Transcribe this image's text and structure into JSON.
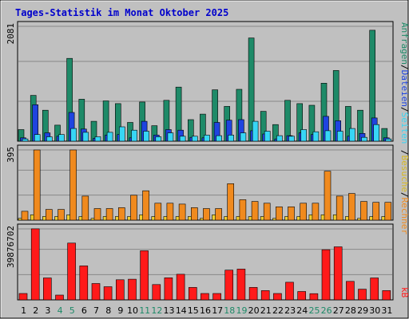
{
  "chart_data": {
    "type": "bar",
    "title": "Tages-Statistik im Monat Oktober 2025",
    "categories": [
      "1",
      "2",
      "3",
      "4",
      "5",
      "6",
      "7",
      "8",
      "9",
      "10",
      "11",
      "12",
      "13",
      "14",
      "15",
      "16",
      "17",
      "18",
      "19",
      "20",
      "21",
      "22",
      "23",
      "24",
      "25",
      "26",
      "27",
      "28",
      "29",
      "30",
      "31"
    ],
    "weekend_days": [
      "4",
      "5",
      "11",
      "12",
      "18",
      "19",
      "25",
      "26"
    ],
    "panels": [
      {
        "id": "top",
        "ymax_label": "2081",
        "ymax": 2081,
        "series": [
          {
            "name": "Anfragen",
            "color": "#1e8a68",
            "values": [
              210,
              830,
              560,
              290,
              1500,
              760,
              360,
              730,
              680,
              340,
              710,
              280,
              740,
              980,
              390,
              490,
              930,
              630,
              940,
              1870,
              540,
              300,
              740,
              680,
              650,
              1050,
              1280,
              630,
              560,
              2010,
              230
            ]
          },
          {
            "name": "Dateien",
            "color": "#1f44e0",
            "values": [
              60,
              660,
              150,
              90,
              520,
              220,
              50,
              110,
              120,
              60,
              360,
              110,
              210,
              200,
              70,
              60,
              340,
              380,
              390,
              190,
              130,
              40,
              100,
              150,
              120,
              450,
              370,
              90,
              140,
              420,
              60
            ]
          },
          {
            "name": "Seiten",
            "color": "#37d6f5",
            "values": [
              40,
              120,
              80,
              120,
              230,
              160,
              80,
              160,
              260,
              200,
              180,
              80,
              150,
              90,
              90,
              110,
              100,
              110,
              150,
              360,
              180,
              100,
              90,
              210,
              170,
              190,
              180,
              230,
              70,
              300,
              40
            ]
          }
        ]
      },
      {
        "id": "middle",
        "ymax_label": "395",
        "ymax": 395,
        "series": [
          {
            "name": "Besuche",
            "color": "#f0d030",
            "values": [
              10,
              30,
              20,
              20,
              30,
              20,
              10,
              20,
              20,
              20,
              30,
              20,
              20,
              20,
              20,
              10,
              30,
              20,
              20,
              20,
              20,
              10,
              20,
              20,
              30,
              30,
              30,
              20,
              10,
              20,
              20
            ]
          },
          {
            "name": "Rechner",
            "color": "#f08a1e",
            "values": [
              50,
              395,
              60,
              60,
              395,
              135,
              65,
              65,
              70,
              140,
              165,
              95,
              95,
              90,
              70,
              65,
              65,
              205,
              115,
              105,
              95,
              75,
              75,
              95,
              95,
              275,
              135,
              150,
              105,
              100,
              100
            ]
          }
        ]
      },
      {
        "id": "bottom",
        "ymax_label": "39876702",
        "ymax": 39876702,
        "series": [
          {
            "name": "kB",
            "color": "#ff1a1a",
            "values": [
              3600000,
              39900000,
              12300000,
              2700000,
              31900000,
              19100000,
              9200000,
              7400000,
              11300000,
              11600000,
              27600000,
              8600000,
              12400000,
              14400000,
              7000000,
              3600000,
              3600000,
              16700000,
              17300000,
              7000000,
              5200000,
              3600000,
              9900000,
              4700000,
              3500000,
              28200000,
              29800000,
              10400000,
              6000000,
              12300000,
              5200000
            ]
          }
        ]
      }
    ],
    "legend_right": [
      {
        "text": "Anfragen",
        "color": "#1e8a68"
      },
      {
        "text": "/",
        "color": "#000000"
      },
      {
        "text": "Dateien",
        "color": "#1f44e0"
      },
      {
        "text": "/",
        "color": "#000000"
      },
      {
        "text": "Seiten",
        "color": "#37d6f5"
      },
      {
        "text": "/",
        "color": "#000000"
      },
      {
        "text": "Besuche",
        "color": "#d8b820"
      },
      {
        "text": "/",
        "color": "#000000"
      },
      {
        "text": "Rechner",
        "color": "#f08a1e"
      },
      {
        "text": "kB",
        "color": "#ff1a1a"
      }
    ],
    "colors": {
      "background": "#c0c0c0",
      "title": "#0000cc",
      "grid": "#888888",
      "weekend_label": "#1e8a68",
      "weekday_label": "#000000"
    }
  }
}
